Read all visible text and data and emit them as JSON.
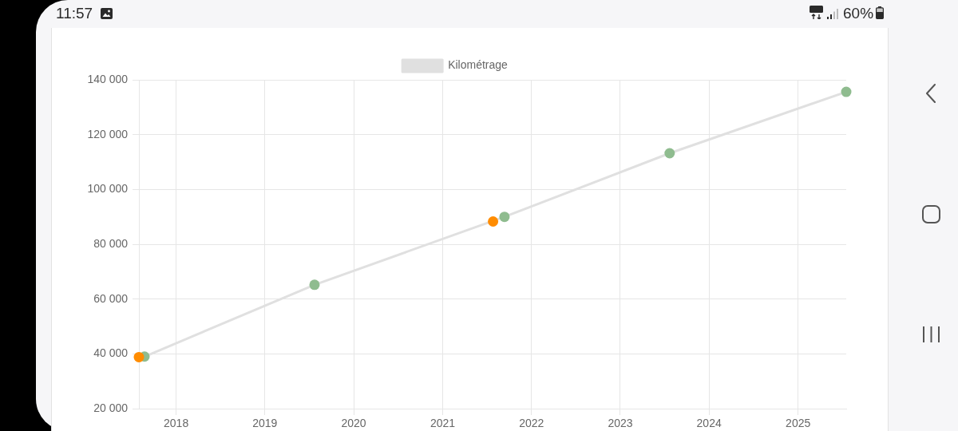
{
  "chart_data": {
    "type": "line",
    "series": [
      {
        "name": "Kilométrage",
        "color": "#e0e0e0",
        "colors": [
          "#8fbc8f",
          "#8fbc8f",
          "#8fbc8f",
          "#8fbc8f",
          "#8fbc8f"
        ],
        "x": [
          "2017-08-24",
          "2019-07-24",
          "2021-09-12",
          "2023-07-23",
          "2025-07-18"
        ],
        "values": [
          39000,
          65200,
          90000,
          113200,
          135600
        ]
      },
      {
        "type": "scatter",
        "color": "#ff8c00",
        "x": [
          "2017-08-01",
          "2021-07-27"
        ],
        "values": [
          38800,
          88300
        ]
      }
    ],
    "xlim": [
      "2017-08-01",
      "2025-07-18"
    ],
    "xticks": [
      "2018",
      "2019",
      "2020",
      "2021",
      "2022",
      "2023",
      "2024",
      "2025"
    ],
    "ylim": [
      20000,
      140000
    ],
    "yticks": [
      {
        "value": 20000,
        "label": "20 000"
      },
      {
        "value": 40000,
        "label": "40 000"
      },
      {
        "value": 60000,
        "label": "60 000"
      },
      {
        "value": 80000,
        "label": "80 000"
      },
      {
        "value": 100000,
        "label": "100 000"
      },
      {
        "value": 120000,
        "label": "120 000"
      },
      {
        "value": 140000,
        "label": "140 000"
      }
    ],
    "grid": true,
    "legend": "top",
    "marker": "circle",
    "line_style": "solid",
    "annotations": [
      "11:57",
      "60%"
    ]
  }
}
